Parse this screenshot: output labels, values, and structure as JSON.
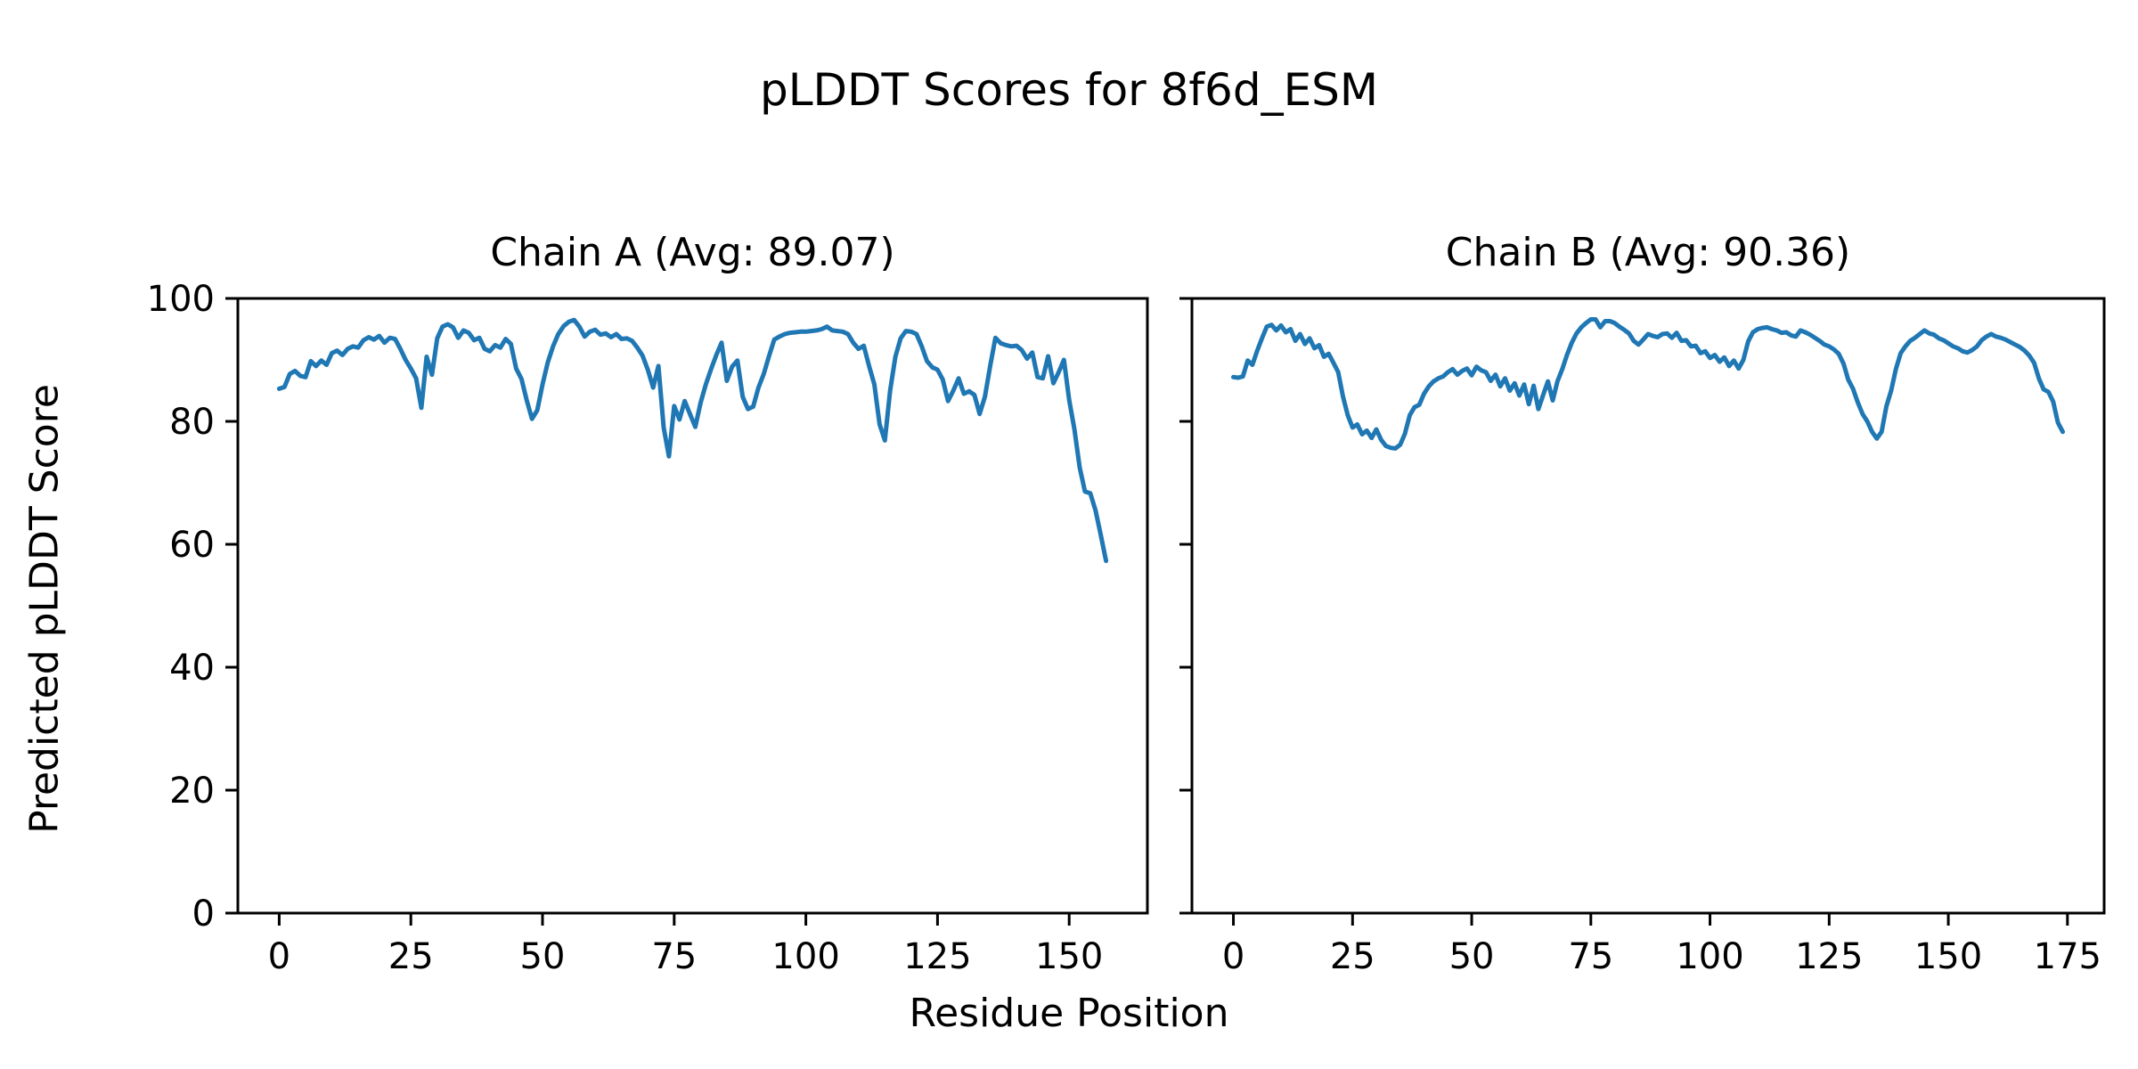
{
  "figure": {
    "suptitle": "pLDDT Scores for 8f6d_ESM",
    "xlabel": "Residue Position",
    "ylabel": "Predicted pLDDT Score"
  },
  "chart_data": [
    {
      "type": "line",
      "title": "Chain A (Avg: 89.07)",
      "average": 89.07,
      "xlabel": "Residue Position",
      "ylabel": "Predicted pLDDT Score",
      "ylim": [
        0,
        100
      ],
      "x_ticks": [
        0,
        25,
        50,
        75,
        100,
        125,
        150
      ],
      "y_ticks": [
        0,
        20,
        40,
        60,
        80,
        100
      ],
      "y_tick_labels_visible": true,
      "grid": false,
      "line_color": "#1f77b4",
      "values": [
        85.3,
        85.6,
        87.7,
        88.2,
        87.4,
        87.2,
        89.8,
        89.0,
        89.9,
        89.2,
        91.1,
        91.5,
        90.8,
        91.8,
        92.2,
        92.0,
        93.2,
        93.7,
        93.3,
        93.9,
        92.8,
        93.6,
        93.4,
        91.8,
        90.0,
        88.6,
        87.0,
        82.2,
        90.5,
        87.6,
        93.5,
        95.4,
        95.8,
        95.3,
        93.6,
        94.8,
        94.4,
        93.2,
        93.6,
        91.8,
        91.4,
        92.4,
        92.0,
        93.4,
        92.6,
        88.6,
        86.9,
        83.4,
        80.4,
        81.8,
        86.0,
        89.6,
        92.2,
        94.2,
        95.5,
        96.2,
        96.5,
        95.4,
        93.8,
        94.6,
        94.9,
        94.1,
        94.3,
        93.7,
        94.2,
        93.4,
        93.5,
        93.1,
        92.0,
        90.7,
        88.4,
        85.5,
        89.0,
        79.0,
        74.3,
        82.5,
        80.3,
        83.3,
        81.2,
        79.1,
        83.0,
        86.0,
        88.5,
        90.8,
        92.8,
        86.6,
        88.9,
        89.9,
        84.0,
        82.0,
        82.4,
        85.5,
        87.7,
        90.6,
        93.3,
        93.8,
        94.2,
        94.4,
        94.5,
        94.6,
        94.6,
        94.7,
        94.8,
        95.0,
        95.4,
        94.8,
        94.7,
        94.6,
        94.2,
        92.8,
        91.8,
        92.3,
        89.0,
        86.0,
        79.5,
        76.9,
        85.0,
        90.5,
        93.5,
        94.7,
        94.6,
        94.2,
        92.2,
        89.8,
        88.8,
        88.4,
        86.8,
        83.3,
        85.0,
        87.0,
        84.5,
        84.9,
        84.3,
        81.2,
        84.0,
        89.0,
        93.6,
        92.7,
        92.4,
        92.2,
        92.3,
        91.6,
        90.2,
        91.2,
        87.2,
        87.0,
        90.6,
        86.2,
        88.0,
        90.0,
        83.5,
        78.7,
        72.5,
        68.6,
        68.3,
        65.5,
        61.5,
        57.3
      ]
    },
    {
      "type": "line",
      "title": "Chain B (Avg: 90.36)",
      "average": 90.36,
      "xlabel": "Residue Position",
      "ylabel": "Predicted pLDDT Score",
      "ylim": [
        0,
        100
      ],
      "x_ticks": [
        0,
        25,
        50,
        75,
        100,
        125,
        150,
        175
      ],
      "y_ticks": [
        0,
        20,
        40,
        60,
        80,
        100
      ],
      "y_tick_labels_visible": false,
      "grid": false,
      "line_color": "#1f77b4",
      "values": [
        87.2,
        87.1,
        87.3,
        89.9,
        89.2,
        91.5,
        93.5,
        95.4,
        95.7,
        94.8,
        95.6,
        94.5,
        95.0,
        93.1,
        94.2,
        92.6,
        93.5,
        91.9,
        92.4,
        90.5,
        91.0,
        89.5,
        88.0,
        84.0,
        81.0,
        79.0,
        79.5,
        77.9,
        78.5,
        77.3,
        78.7,
        77.0,
        76.0,
        75.7,
        75.6,
        76.2,
        78.0,
        81.0,
        82.3,
        82.7,
        84.5,
        85.7,
        86.5,
        87.0,
        87.3,
        88.0,
        88.5,
        87.6,
        88.2,
        88.6,
        87.5,
        88.9,
        88.3,
        88.0,
        86.6,
        87.6,
        85.7,
        87.0,
        85.0,
        86.2,
        84.2,
        86.0,
        82.8,
        85.8,
        82.0,
        84.3,
        86.5,
        83.4,
        86.5,
        88.5,
        90.8,
        92.8,
        94.3,
        95.3,
        96.0,
        96.6,
        96.6,
        95.3,
        96.3,
        96.3,
        96.0,
        95.4,
        94.9,
        94.3,
        93.1,
        92.5,
        93.3,
        94.2,
        93.9,
        93.7,
        94.2,
        94.3,
        93.6,
        94.4,
        93.1,
        93.2,
        92.2,
        92.3,
        91.1,
        91.4,
        90.3,
        90.8,
        89.7,
        90.4,
        89.0,
        89.9,
        88.6,
        90.0,
        93.0,
        94.5,
        95.0,
        95.2,
        95.3,
        95.0,
        94.8,
        94.4,
        94.5,
        94.0,
        93.8,
        94.8,
        94.5,
        94.1,
        93.6,
        93.1,
        92.5,
        92.2,
        91.7,
        91.0,
        89.4,
        86.8,
        85.3,
        83.1,
        81.2,
        80.0,
        78.3,
        77.2,
        78.3,
        82.4,
        85.0,
        88.5,
        91.1,
        92.2,
        93.1,
        93.6,
        94.2,
        94.8,
        94.3,
        94.1,
        93.5,
        93.2,
        92.7,
        92.2,
        91.9,
        91.4,
        91.2,
        91.6,
        92.2,
        93.2,
        93.8,
        94.2,
        93.8,
        93.6,
        93.3,
        92.9,
        92.5,
        92.1,
        91.5,
        90.7,
        89.5,
        87.0,
        85.2,
        84.8,
        83.2,
        79.8,
        78.3
      ]
    }
  ],
  "style": {
    "line_color": "#1f77b4",
    "spine_color": "#000000",
    "background": "#ffffff"
  }
}
